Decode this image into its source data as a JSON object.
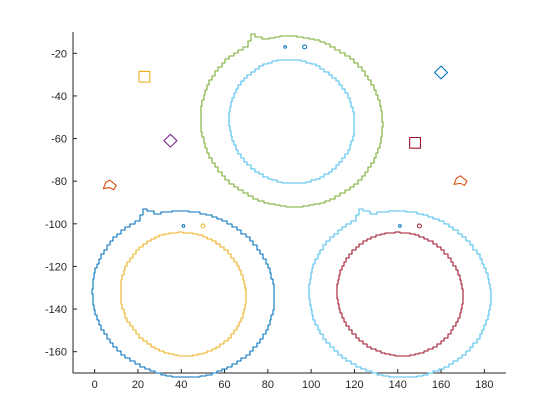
{
  "chart_data": {
    "type": "line",
    "title": "",
    "xlabel": "",
    "ylabel": "",
    "xlim": [
      -10,
      190
    ],
    "ylim": [
      -170,
      -10
    ],
    "grid": false,
    "legend": "none",
    "xticks": [
      0,
      20,
      40,
      60,
      80,
      100,
      120,
      140,
      160,
      180
    ],
    "yticks": [
      -20,
      -40,
      -60,
      -80,
      -100,
      -120,
      -140,
      -160
    ],
    "xtick_labels": [
      "0",
      "20",
      "40",
      "60",
      "80",
      "100",
      "120",
      "140",
      "160",
      "180"
    ],
    "ytick_labels": [
      "-20",
      "-40",
      "-60",
      "-80",
      "-100",
      "-120",
      "-140",
      "-160"
    ],
    "series": [
      {
        "color": "#77ac30",
        "shape": "ring-with-ears",
        "cx": 91,
        "cy": -52,
        "rx": 42,
        "ry": 40
      },
      {
        "color": "#4dbeee",
        "shape": "circle",
        "cx": 91,
        "cy": -52,
        "rx": 29,
        "ry": 29
      },
      {
        "color": "#0072bd",
        "shape": "ring-with-ears",
        "cx": 41,
        "cy": -133,
        "rx": 42,
        "ry": 39
      },
      {
        "color": "#edb120",
        "shape": "circle",
        "cx": 41,
        "cy": -133,
        "rx": 29,
        "ry": 29
      },
      {
        "color": "#4dbeee",
        "shape": "ring-with-ears",
        "cx": 141,
        "cy": -133,
        "rx": 42,
        "ry": 39
      },
      {
        "color": "#a2142f",
        "shape": "circle",
        "cx": 141,
        "cy": -133,
        "rx": 29,
        "ry": 29
      },
      {
        "color": "#edb120",
        "shape": "square",
        "cx": 23,
        "cy": -31,
        "rx": 2.5,
        "ry": 2.5
      },
      {
        "color": "#0072bd",
        "shape": "diamond",
        "cx": 160,
        "cy": -29,
        "rx": 3,
        "ry": 3
      },
      {
        "color": "#7e2f8e",
        "shape": "diamond",
        "cx": 35,
        "cy": -61,
        "rx": 3,
        "ry": 3
      },
      {
        "color": "#a2142f",
        "shape": "square",
        "cx": 148,
        "cy": -62,
        "rx": 2.5,
        "ry": 2.5
      },
      {
        "color": "#d95319",
        "shape": "blob",
        "cx": 7,
        "cy": -82,
        "rx": 3,
        "ry": 2.5
      },
      {
        "color": "#d95319",
        "shape": "blob",
        "cx": 169,
        "cy": -80,
        "rx": 3,
        "ry": 2.5
      },
      {
        "color": "#0072bd",
        "shape": "dot",
        "cx": 88,
        "cy": -17,
        "rx": 0.6,
        "ry": 0.6
      },
      {
        "color": "#0072bd",
        "shape": "dot",
        "cx": 97,
        "cy": -17,
        "rx": 0.9,
        "ry": 0.9
      },
      {
        "color": "#0072bd",
        "shape": "dot",
        "cx": 41,
        "cy": -101,
        "rx": 0.6,
        "ry": 0.6
      },
      {
        "color": "#edb120",
        "shape": "dot",
        "cx": 50,
        "cy": -101,
        "rx": 0.9,
        "ry": 0.9
      },
      {
        "color": "#0072bd",
        "shape": "dot",
        "cx": 141,
        "cy": -101,
        "rx": 0.6,
        "ry": 0.6
      },
      {
        "color": "#a2142f",
        "shape": "dot",
        "cx": 150,
        "cy": -101,
        "rx": 0.9,
        "ry": 0.9
      }
    ]
  }
}
